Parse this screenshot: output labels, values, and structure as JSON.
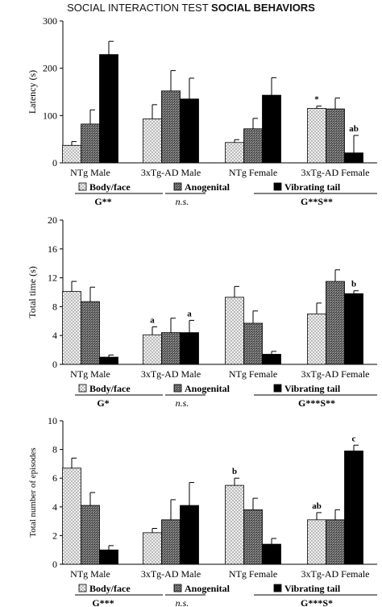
{
  "figure_title": {
    "prefix": "SOCIAL INTERACTION TEST",
    "emphasis": "SOCIAL BEHAVIORS"
  },
  "chart_data": [
    {
      "type": "bar",
      "ylabel": "Latency (s)",
      "ylim": [
        0,
        300
      ],
      "yticks": [
        0,
        100,
        200,
        300
      ],
      "categories": [
        "NTg Male",
        "3xTg-AD Male",
        "NTg Female",
        "3xTg-AD Female"
      ],
      "series": [
        {
          "name": "Body/face",
          "values": [
            37,
            93,
            43,
            115
          ],
          "errors": [
            8,
            30,
            6,
            5
          ],
          "pattern": "dots"
        },
        {
          "name": "Anogenital",
          "values": [
            82,
            152,
            72,
            114
          ],
          "errors": [
            30,
            43,
            22,
            23
          ],
          "pattern": "hatch"
        },
        {
          "name": "Vibrating tail",
          "values": [
            229,
            135,
            143,
            21
          ],
          "errors": [
            28,
            44,
            37,
            37
          ],
          "pattern": "solid"
        }
      ],
      "annotations": [
        {
          "category": 3,
          "series": 0,
          "text": "*"
        },
        {
          "category": 3,
          "series": 2,
          "text": "ab"
        }
      ],
      "stats": [
        "G**",
        "n.s.",
        "G**S**"
      ]
    },
    {
      "type": "bar",
      "ylabel": "Total time (s)",
      "ylim": [
        0,
        20
      ],
      "yticks": [
        0,
        4,
        8,
        12,
        16,
        20
      ],
      "categories": [
        "NTg Male",
        "3xTg-AD Male",
        "NTg Female",
        "3xTg-AD Female"
      ],
      "series": [
        {
          "name": "Body/face",
          "values": [
            10.1,
            4.1,
            9.3,
            7.0
          ],
          "errors": [
            1.4,
            1.1,
            1.5,
            1.5
          ],
          "pattern": "dots"
        },
        {
          "name": "Anogenital",
          "values": [
            8.7,
            4.4,
            5.7,
            11.5
          ],
          "errors": [
            2.0,
            2.0,
            1.7,
            1.6
          ],
          "pattern": "hatch"
        },
        {
          "name": "Vibrating tail",
          "values": [
            1.0,
            4.4,
            1.4,
            9.8
          ],
          "errors": [
            0.3,
            1.7,
            0.4,
            0.4
          ],
          "pattern": "solid"
        }
      ],
      "annotations": [
        {
          "category": 1,
          "series": 0,
          "text": "a"
        },
        {
          "category": 1,
          "series": 2,
          "text": "a"
        },
        {
          "category": 3,
          "series": 2,
          "text": "b"
        }
      ],
      "stats": [
        "G*",
        "n.s.",
        "G***S**"
      ]
    },
    {
      "type": "bar",
      "ylabel": "Total number of episodes",
      "ylim": [
        0,
        10
      ],
      "yticks": [
        0,
        2,
        4,
        6,
        8,
        10
      ],
      "categories": [
        "NTg Male",
        "3xTg-AD Male",
        "NTg Female",
        "3xTg-AD Female"
      ],
      "series": [
        {
          "name": "Body/face",
          "values": [
            6.7,
            2.2,
            5.5,
            3.1
          ],
          "errors": [
            0.7,
            0.3,
            0.5,
            0.5
          ],
          "pattern": "dots"
        },
        {
          "name": "Anogenital",
          "values": [
            4.1,
            3.1,
            3.8,
            3.1
          ],
          "errors": [
            0.9,
            1.4,
            0.8,
            0.7
          ],
          "pattern": "hatch"
        },
        {
          "name": "Vibrating tail",
          "values": [
            1.0,
            4.1,
            1.4,
            7.9
          ],
          "errors": [
            0.3,
            1.6,
            0.4,
            0.4
          ],
          "pattern": "solid"
        }
      ],
      "annotations": [
        {
          "category": 2,
          "series": 0,
          "text": "b"
        },
        {
          "category": 3,
          "series": 0,
          "text": "ab"
        },
        {
          "category": 3,
          "series": 2,
          "text": "c"
        }
      ],
      "stats": [
        "G***",
        "n.s.",
        "G***S*"
      ]
    }
  ]
}
